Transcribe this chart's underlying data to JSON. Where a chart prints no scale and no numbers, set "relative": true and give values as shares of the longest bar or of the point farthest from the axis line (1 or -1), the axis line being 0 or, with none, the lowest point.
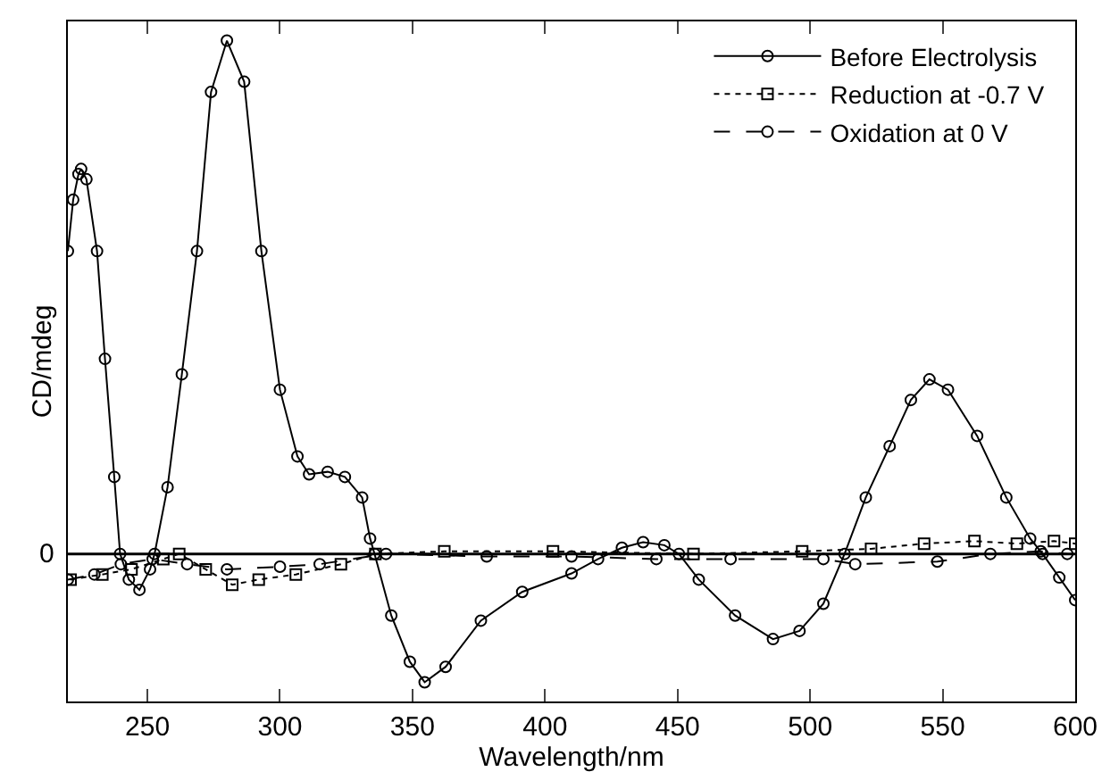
{
  "chart_data": {
    "type": "line",
    "xlabel": "Wavelength/nm",
    "ylabel": "CD/mdeg",
    "relative": true,
    "xlim": [
      220,
      600
    ],
    "xticks": [
      250,
      300,
      350,
      400,
      450,
      500,
      550,
      600
    ],
    "ref_lines": [
      {
        "axis": "y",
        "value": 0,
        "label": "0"
      }
    ],
    "legend": "top right",
    "grid": false,
    "series": [
      {
        "name": "Before Electrolysis",
        "color": "#000000",
        "marker": "circle",
        "line_style": "solid",
        "x": [
          220,
          222,
          224,
          225,
          227,
          231,
          234,
          237.5,
          239.7,
          243,
          247,
          251,
          252.7,
          257.6,
          263,
          268.7,
          274,
          280,
          286.5,
          293,
          300,
          306.6,
          311,
          318,
          324.5,
          331,
          334,
          335.7,
          342,
          349,
          354.6,
          362.5,
          375.8,
          391.4,
          410,
          420,
          429,
          437,
          445,
          450.5,
          458,
          471.7,
          486,
          496,
          505,
          513,
          521,
          530,
          538,
          545,
          552,
          563,
          574,
          583,
          587.7,
          594,
          600
        ],
        "values": [
          0.59,
          0.69,
          0.74,
          0.75,
          0.73,
          0.59,
          0.38,
          0.15,
          0,
          -0.05,
          -0.07,
          -0.03,
          0,
          0.13,
          0.35,
          0.59,
          0.9,
          1.0,
          0.92,
          0.59,
          0.32,
          0.19,
          0.155,
          0.16,
          0.15,
          0.11,
          0.03,
          0,
          -0.12,
          -0.21,
          -0.25,
          -0.22,
          -0.13,
          -0.074,
          -0.038,
          -0.01,
          0.012,
          0.023,
          0.017,
          0,
          -0.05,
          -0.12,
          -0.166,
          -0.15,
          -0.097,
          0,
          0.11,
          0.21,
          0.3,
          0.34,
          0.32,
          0.23,
          0.11,
          0.03,
          0,
          -0.046,
          -0.09
        ]
      },
      {
        "name": "Reduction at -0.7 V",
        "color": "#000000",
        "marker": "square",
        "line_style": "dotted",
        "x": [
          221,
          233,
          244,
          256,
          262,
          272,
          282,
          292,
          306,
          323,
          336,
          362,
          403,
          456,
          497,
          523,
          543,
          562,
          578,
          592,
          600
        ],
        "values": [
          -0.05,
          -0.04,
          -0.03,
          -0.01,
          0,
          -0.03,
          -0.06,
          -0.05,
          -0.04,
          -0.02,
          0,
          0.005,
          0.005,
          0,
          0.005,
          0.01,
          0.02,
          0.025,
          0.02,
          0.025,
          0.02
        ]
      },
      {
        "name": "Oxidation at 0 V",
        "color": "#000000",
        "marker": "circle",
        "line_style": "dashed",
        "x": [
          220,
          230,
          240,
          252,
          265,
          280,
          300,
          315,
          340,
          378,
          410,
          442,
          470,
          505,
          517,
          548,
          568,
          587,
          597
        ],
        "values": [
          -0.05,
          -0.04,
          -0.02,
          -0.01,
          -0.02,
          -0.03,
          -0.025,
          -0.02,
          0,
          -0.005,
          -0.005,
          -0.01,
          -0.01,
          -0.01,
          -0.02,
          -0.015,
          0,
          0.005,
          0
        ]
      }
    ]
  }
}
